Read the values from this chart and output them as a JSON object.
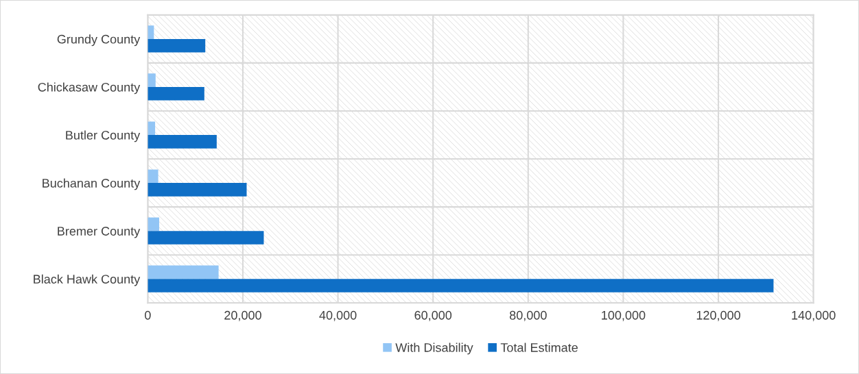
{
  "chart_data": {
    "type": "bar",
    "orientation": "horizontal",
    "categories": [
      "Grundy County",
      "Chickasaw County",
      "Butler County",
      "Buchanan County",
      "Bremer County",
      "Black Hawk County"
    ],
    "series": [
      {
        "name": "With Disability",
        "color": "#92c5f5",
        "values": [
          1300,
          1650,
          1550,
          2200,
          2400,
          14900
        ]
      },
      {
        "name": "Total Estimate",
        "color": "#0f6fc6",
        "values": [
          12100,
          11900,
          14500,
          20800,
          24400,
          131600
        ]
      }
    ],
    "xlim": [
      0,
      140000
    ],
    "xticks": [
      {
        "value": 0,
        "label": "0"
      },
      {
        "value": 20000,
        "label": "20,000"
      },
      {
        "value": 40000,
        "label": "40,000"
      },
      {
        "value": 60000,
        "label": "60,000"
      },
      {
        "value": 80000,
        "label": "80,000"
      },
      {
        "value": 100000,
        "label": "100,000"
      },
      {
        "value": 120000,
        "label": "120,000"
      },
      {
        "value": 140000,
        "label": "140,000"
      }
    ],
    "grid": true,
    "legend": "bottom"
  }
}
